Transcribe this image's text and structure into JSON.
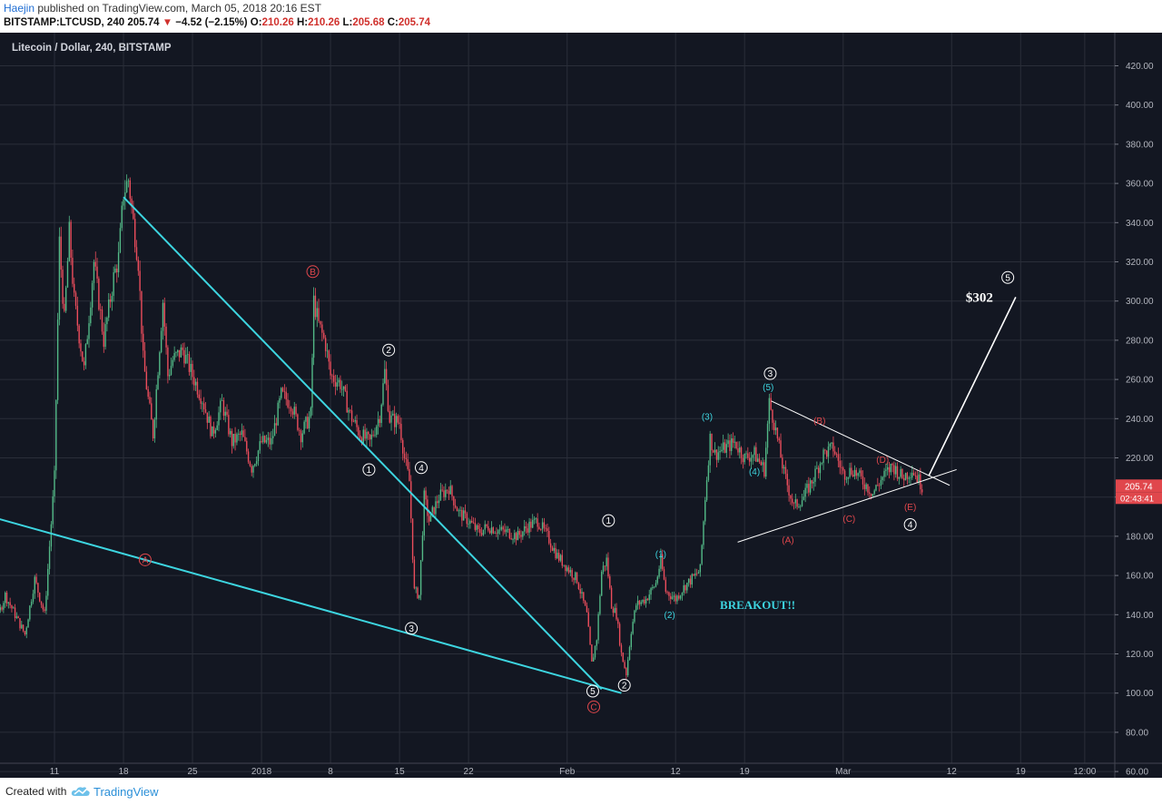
{
  "header": {
    "author": "Haejin",
    "published": "published on TradingView.com, March 05, 2018 20:16 EST",
    "symbol": "BITSTAMP:LTCUSD, 240",
    "last": "205.74",
    "arrow": "▼",
    "change": "−4.52 (−2.15%)",
    "o_label": "O:",
    "o_value": "210.26",
    "h_label": "H:",
    "h_value": "210.26",
    "l_label": "L:",
    "l_value": "205.68",
    "c_label": "C:",
    "c_value": "205.74"
  },
  "footer": {
    "created_with": "Created with",
    "brand": "TradingView"
  },
  "colors": {
    "background": "#131722",
    "grid": "#2a2e39",
    "up": "#53b987",
    "down": "#eb4d5c",
    "trendline": "#3dd5e0",
    "triangle": "#ffffff",
    "wave_white": "#ffffff",
    "wave_red": "#e0474c",
    "wave_cyan": "#3dd5e0",
    "price_tag": "#e0474c"
  },
  "chart_data": {
    "type": "candlestick",
    "title": "Litecoin / Dollar, 240, BITSTAMP",
    "ylim": [
      50,
      420
    ],
    "y_ticks": [
      "60.00",
      "80.00",
      "100.00",
      "120.00",
      "140.00",
      "160.00",
      "180.00",
      "200.00",
      "220.00",
      "240.00",
      "260.00",
      "280.00",
      "300.00",
      "320.00",
      "340.00",
      "360.00",
      "380.00",
      "400.00",
      "420.00"
    ],
    "x_ticks": [
      "11",
      "18",
      "25",
      "2018",
      "8",
      "15",
      "22",
      "Feb",
      "12",
      "19",
      "Mar",
      "12",
      "19",
      "12:00"
    ],
    "x_axis": "Dec 2017 – Mar 2018, 4-hour bars",
    "price_path": [
      [
        -10,
        99
      ],
      [
        -8,
        90
      ],
      [
        -7,
        110
      ],
      [
        -6,
        135
      ],
      [
        -5,
        150
      ],
      [
        -3,
        130
      ],
      [
        -2,
        158
      ],
      [
        -1,
        140
      ],
      [
        0,
        210
      ],
      [
        0.5,
        330
      ],
      [
        1,
        290
      ],
      [
        1.5,
        335
      ],
      [
        2,
        300
      ],
      [
        3,
        265
      ],
      [
        4,
        320
      ],
      [
        5,
        280
      ],
      [
        6,
        312
      ],
      [
        6.5,
        322
      ],
      [
        7,
        355
      ],
      [
        7.5,
        362
      ],
      [
        8,
        340
      ],
      [
        8.5,
        320
      ],
      [
        9,
        270
      ],
      [
        9.5,
        250
      ],
      [
        10,
        232
      ],
      [
        11,
        300
      ],
      [
        11.5,
        262
      ],
      [
        12,
        270
      ],
      [
        13,
        275
      ],
      [
        14,
        262
      ],
      [
        15,
        250
      ],
      [
        16,
        232
      ],
      [
        17,
        248
      ],
      [
        18,
        228
      ],
      [
        19,
        232
      ],
      [
        20,
        215
      ],
      [
        21,
        228
      ],
      [
        22,
        228
      ],
      [
        23,
        252
      ],
      [
        24,
        248
      ],
      [
        25,
        232
      ],
      [
        26,
        242
      ],
      [
        26.3,
        300
      ],
      [
        26.8,
        288
      ],
      [
        27.5,
        278
      ],
      [
        28,
        262
      ],
      [
        29,
        258
      ],
      [
        30,
        242
      ],
      [
        31,
        232
      ],
      [
        32,
        228
      ],
      [
        33,
        242
      ],
      [
        33.5,
        264
      ],
      [
        34,
        240
      ],
      [
        35,
        238
      ],
      [
        35.5,
        220
      ],
      [
        36,
        208
      ],
      [
        36.5,
        152
      ],
      [
        37,
        150
      ],
      [
        37.5,
        200
      ],
      [
        38,
        188
      ],
      [
        39,
        200
      ],
      [
        40,
        205
      ],
      [
        41,
        192
      ],
      [
        42,
        188
      ],
      [
        43,
        182
      ],
      [
        44,
        185
      ],
      [
        45,
        183
      ],
      [
        46,
        182
      ],
      [
        47,
        180
      ],
      [
        48,
        185
      ],
      [
        49,
        188
      ],
      [
        50,
        180
      ],
      [
        51,
        170
      ],
      [
        52,
        164
      ],
      [
        53,
        158
      ],
      [
        54,
        140
      ],
      [
        54.5,
        115
      ],
      [
        55,
        128
      ],
      [
        55.5,
        162
      ],
      [
        56,
        168
      ],
      [
        56.5,
        145
      ],
      [
        57,
        140
      ],
      [
        57.5,
        120
      ],
      [
        58,
        110
      ],
      [
        58.5,
        132
      ],
      [
        59,
        145
      ],
      [
        60,
        148
      ],
      [
        61,
        156
      ],
      [
        61.5,
        168
      ],
      [
        62,
        152
      ],
      [
        63,
        148
      ],
      [
        64,
        155
      ],
      [
        65,
        160
      ],
      [
        65.5,
        163
      ],
      [
        66,
        200
      ],
      [
        66.5,
        230
      ],
      [
        67,
        222
      ],
      [
        68,
        225
      ],
      [
        69,
        228
      ],
      [
        70,
        220
      ],
      [
        71,
        222
      ],
      [
        72,
        214
      ],
      [
        72.5,
        248
      ],
      [
        73,
        238
      ],
      [
        73.5,
        225
      ],
      [
        74,
        212
      ],
      [
        75,
        195
      ],
      [
        76,
        200
      ],
      [
        77,
        210
      ],
      [
        78,
        222
      ],
      [
        79,
        225
      ],
      [
        80,
        212
      ],
      [
        81,
        214
      ],
      [
        82,
        208
      ],
      [
        83,
        202
      ],
      [
        84,
        210
      ],
      [
        85,
        216
      ],
      [
        86,
        210
      ],
      [
        86.5,
        212
      ],
      [
        87,
        214
      ],
      [
        87.5,
        210
      ],
      [
        88,
        205.74
      ]
    ],
    "last_price": "205.74",
    "countdown": "02:43:41",
    "trendlines": [
      {
        "name": "falling resistance",
        "from": [
          7,
          353
        ],
        "to": [
          55.5,
          102
        ]
      },
      {
        "name": "falling support",
        "from": [
          -10,
          195
        ],
        "to": [
          57.5,
          100
        ]
      }
    ],
    "projection": {
      "from": [
        88.7,
        211
      ],
      "to": [
        97.5,
        302
      ],
      "label": "$302"
    },
    "annotations": [
      {
        "text": "A",
        "style": "red",
        "circled": true,
        "at": [
          9.2,
          168
        ]
      },
      {
        "text": "B",
        "style": "red",
        "circled": true,
        "at": [
          26.2,
          315
        ]
      },
      {
        "text": "C",
        "style": "red",
        "circled": true,
        "at": [
          54.7,
          93
        ]
      },
      {
        "text": "1",
        "style": "white",
        "circled": true,
        "at": [
          31.9,
          214
        ]
      },
      {
        "text": "2",
        "style": "white",
        "circled": true,
        "at": [
          33.9,
          275
        ]
      },
      {
        "text": "3",
        "style": "white",
        "circled": true,
        "at": [
          36.2,
          133
        ]
      },
      {
        "text": "4",
        "style": "white",
        "circled": true,
        "at": [
          37.2,
          215
        ]
      },
      {
        "text": "5",
        "style": "white",
        "circled": true,
        "at": [
          54.6,
          101
        ]
      },
      {
        "text": "2",
        "style": "white",
        "circled": true,
        "at": [
          57.8,
          104
        ]
      },
      {
        "text": "1",
        "style": "white",
        "circled": true,
        "at": [
          56.2,
          188
        ]
      },
      {
        "text": "(1)",
        "style": "cyan",
        "circled": false,
        "at": [
          61.5,
          171
        ]
      },
      {
        "text": "(2)",
        "style": "cyan",
        "circled": false,
        "at": [
          62.4,
          140
        ]
      },
      {
        "text": "(3)",
        "style": "cyan",
        "circled": false,
        "at": [
          66.2,
          241
        ]
      },
      {
        "text": "(4)",
        "style": "cyan",
        "circled": false,
        "at": [
          71.0,
          213
        ]
      },
      {
        "text": "(5)",
        "style": "cyan",
        "circled": false,
        "at": [
          72.4,
          256
        ]
      },
      {
        "text": "3",
        "style": "white",
        "circled": true,
        "at": [
          72.6,
          263
        ]
      },
      {
        "text": "(A)",
        "style": "red",
        "circled": false,
        "at": [
          74.4,
          178
        ]
      },
      {
        "text": "(B)",
        "style": "red",
        "circled": false,
        "at": [
          77.6,
          239
        ]
      },
      {
        "text": "(C)",
        "style": "red",
        "circled": false,
        "at": [
          80.6,
          189
        ]
      },
      {
        "text": "(D)",
        "style": "red",
        "circled": false,
        "at": [
          84.0,
          219
        ]
      },
      {
        "text": "(E)",
        "style": "red",
        "circled": false,
        "at": [
          86.8,
          195
        ]
      },
      {
        "text": "4",
        "style": "white",
        "circled": true,
        "at": [
          86.8,
          186
        ]
      },
      {
        "text": "5",
        "style": "white",
        "circled": true,
        "at": [
          96.7,
          312
        ]
      },
      {
        "text": "BREAKOUT!!",
        "style": "cyan_bold",
        "circled": false,
        "at": [
          67.5,
          143
        ]
      }
    ]
  }
}
